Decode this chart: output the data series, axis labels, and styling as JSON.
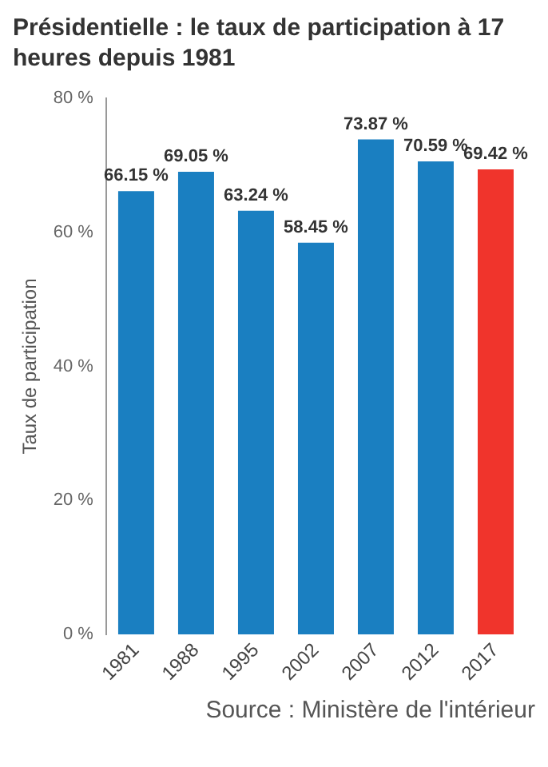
{
  "chart_data": {
    "type": "bar",
    "title": "Présidentielle : le taux de participation à 17 heures depuis 1981",
    "ylabel": "Taux de participation",
    "categories": [
      "1981",
      "1988",
      "1995",
      "2002",
      "2007",
      "2012",
      "2017"
    ],
    "values": [
      66.15,
      69.05,
      63.24,
      58.45,
      73.87,
      70.59,
      69.42
    ],
    "value_labels": [
      "66.15 %",
      "69.05 %",
      "63.24 %",
      "58.45 %",
      "73.87 %",
      "70.59 %",
      "69.42 %"
    ],
    "colors": [
      "#1a7fc1",
      "#1a7fc1",
      "#1a7fc1",
      "#1a7fc1",
      "#1a7fc1",
      "#1a7fc1",
      "#f0342c"
    ],
    "ylim": [
      0,
      80
    ],
    "yticks": [
      {
        "value": 0,
        "label": "0 %"
      },
      {
        "value": 20,
        "label": "20 %"
      },
      {
        "value": 40,
        "label": "40 %"
      },
      {
        "value": 60,
        "label": "60 %"
      },
      {
        "value": 80,
        "label": "80 %"
      }
    ],
    "grid": false,
    "annotations": [
      "Source : Ministère de l'intérieur"
    ]
  }
}
